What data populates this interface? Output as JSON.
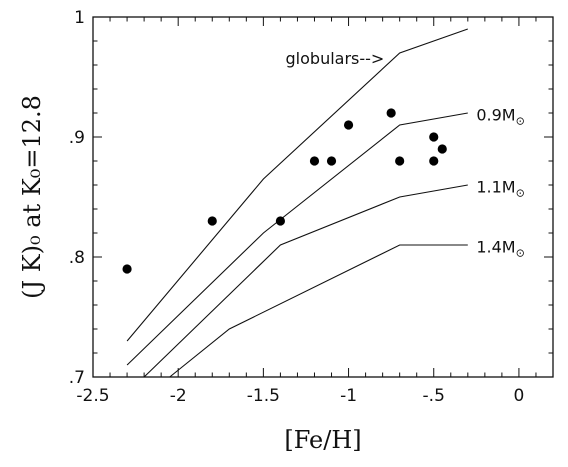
{
  "chart_data": {
    "type": "scatter",
    "xlabel": "[Fe/H]",
    "ylabel": "(J K)₀ at K₀=12.8",
    "xlim": [
      -2.5,
      0.2
    ],
    "ylim": [
      0.7,
      1.0
    ],
    "x_ticks": [
      -2.5,
      -2,
      -1.5,
      -1,
      -0.5,
      0
    ],
    "x_tick_labels": [
      "-2.5",
      "-2",
      "-1.5",
      "-1",
      "-.5",
      "0"
    ],
    "y_ticks": [
      0.7,
      0.8,
      0.9,
      1.0
    ],
    "y_tick_labels": [
      ".7",
      ".8",
      ".9",
      "1"
    ],
    "points": [
      {
        "x": -2.3,
        "y": 0.79
      },
      {
        "x": -1.8,
        "y": 0.83
      },
      {
        "x": -1.4,
        "y": 0.83
      },
      {
        "x": -1.2,
        "y": 0.88
      },
      {
        "x": -1.1,
        "y": 0.88
      },
      {
        "x": -1.0,
        "y": 0.91
      },
      {
        "x": -0.75,
        "y": 0.92
      },
      {
        "x": -0.7,
        "y": 0.88
      },
      {
        "x": -0.5,
        "y": 0.9
      },
      {
        "x": -0.5,
        "y": 0.88
      },
      {
        "x": -0.45,
        "y": 0.89
      }
    ],
    "lines": [
      {
        "name": "globulars",
        "x": [
          -2.3,
          -1.5,
          -0.7,
          -0.3
        ],
        "y": [
          0.73,
          0.865,
          0.97,
          0.99
        ]
      },
      {
        "name": "0.9M⊙",
        "x": [
          -2.3,
          -1.5,
          -0.7,
          -0.3
        ],
        "y": [
          0.71,
          0.82,
          0.91,
          0.92
        ]
      },
      {
        "name": "1.1M⊙",
        "x": [
          -2.2,
          -1.4,
          -0.7,
          -0.3
        ],
        "y": [
          0.7,
          0.81,
          0.85,
          0.86
        ]
      },
      {
        "name": "1.4M⊙",
        "x": [
          -2.05,
          -1.7,
          -0.7,
          -0.3
        ],
        "y": [
          0.7,
          0.74,
          0.81,
          0.81
        ]
      }
    ],
    "annotations": [
      {
        "text": "globulars-->",
        "x": -1.08,
        "y": 0.965
      },
      {
        "text": "0.9M",
        "subscript": "⊙",
        "x": -0.25,
        "y": 0.918
      },
      {
        "text": "1.1M",
        "subscript": "⊙",
        "x": -0.25,
        "y": 0.858
      },
      {
        "text": "1.4M",
        "subscript": "⊙",
        "x": -0.25,
        "y": 0.808
      }
    ]
  }
}
